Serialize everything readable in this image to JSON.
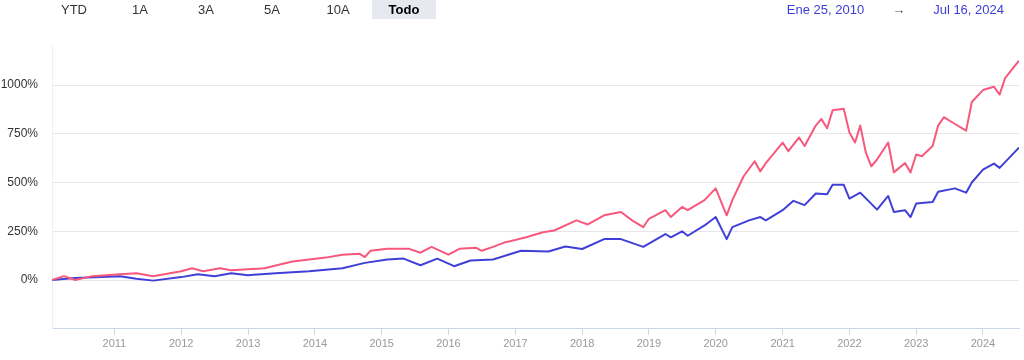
{
  "chart_data": {
    "type": "line",
    "marker": "none",
    "line_style": "solid",
    "grid": "y",
    "legend": false,
    "xlim": [
      "2010-01-25",
      "2024-07-16"
    ],
    "xticks": [
      "2011",
      "2012",
      "2013",
      "2014",
      "2015",
      "2016",
      "2017",
      "2018",
      "2019",
      "2020",
      "2021",
      "2022",
      "2023",
      "2024"
    ],
    "ylim": [
      -250,
      1200
    ],
    "yticks": [
      {
        "value": 0,
        "label": "0%"
      },
      {
        "value": 250,
        "label": "250%"
      },
      {
        "value": 500,
        "label": "500%"
      },
      {
        "value": 750,
        "label": "750%"
      },
      {
        "value": 1000,
        "label": "1000%"
      }
    ],
    "annotations": [
      "YTD",
      "1A",
      "3A",
      "5A",
      "10A",
      "Todo",
      "Ene 25, 2010",
      "→",
      "Jul 16, 2024"
    ],
    "series": [
      {
        "color": "#f7587c",
        "x": [
          "2010-01-25",
          "2010-04",
          "2010-06",
          "2010-09",
          "2011-02",
          "2011-05",
          "2011-08",
          "2012-01",
          "2012-03",
          "2012-05",
          "2012-08",
          "2012-10",
          "2013-04",
          "2013-06",
          "2013-09",
          "2013-12",
          "2014-03",
          "2014-06",
          "2014-09",
          "2014-10",
          "2014-11",
          "2015-02",
          "2015-06",
          "2015-08",
          "2015-10",
          "2016-01",
          "2016-03",
          "2016-06",
          "2016-07",
          "2016-09",
          "2016-11",
          "2017-03",
          "2017-06",
          "2017-08",
          "2017-12",
          "2018-02",
          "2018-05",
          "2018-08",
          "2018-10",
          "2018-12",
          "2019-01",
          "2019-04",
          "2019-05",
          "2019-07",
          "2019-08",
          "2019-11",
          "2020-01",
          "2020-03",
          "2020-04",
          "2020-06",
          "2020-08",
          "2020-09",
          "2020-10",
          "2021-01",
          "2021-02",
          "2021-04",
          "2021-05",
          "2021-07",
          "2021-08",
          "2021-09",
          "2021-10",
          "2021-12",
          "2022-01",
          "2022-02",
          "2022-03",
          "2022-04",
          "2022-05",
          "2022-06",
          "2022-08",
          "2022-09",
          "2022-11",
          "2022-12",
          "2023-01",
          "2023-02",
          "2023-04",
          "2023-05",
          "2023-06",
          "2023-08",
          "2023-10",
          "2023-11",
          "2024-01",
          "2024-03",
          "2024-04",
          "2024-05",
          "2024-07-16"
        ],
        "values": [
          0,
          20,
          0,
          20,
          30,
          35,
          20,
          45,
          60,
          45,
          60,
          50,
          60,
          75,
          95,
          105,
          115,
          130,
          135,
          118,
          150,
          160,
          160,
          140,
          170,
          130,
          160,
          165,
          150,
          170,
          192,
          219,
          245,
          254,
          306,
          285,
          332,
          349,
          306,
          271,
          314,
          358,
          323,
          375,
          358,
          410,
          470,
          332,
          410,
          531,
          609,
          557,
          600,
          705,
          661,
          731,
          687,
          792,
          826,
          778,
          870,
          878,
          757,
          705,
          792,
          653,
          583,
          618,
          705,
          552,
          600,
          552,
          644,
          635,
          687,
          792,
          835,
          800,
          766,
          913,
          974,
          991,
          951,
          1035,
          1125
        ]
      },
      {
        "color": "#4040d8",
        "x": [
          "2010-01-25",
          "2010-06",
          "2011-02",
          "2011-05",
          "2011-08",
          "2012-01",
          "2012-04",
          "2012-07",
          "2012-10",
          "2013-01",
          "2013-06",
          "2013-12",
          "2014-06",
          "2014-10",
          "2015-02",
          "2015-05",
          "2015-08",
          "2015-11",
          "2016-02",
          "2016-05",
          "2016-09",
          "2016-12",
          "2017-02",
          "2017-07",
          "2017-10",
          "2018-01",
          "2018-05",
          "2018-08",
          "2018-12",
          "2019-04",
          "2019-05",
          "2019-07",
          "2019-08",
          "2019-11",
          "2020-01",
          "2020-03",
          "2020-04",
          "2020-07",
          "2020-09",
          "2020-10",
          "2021-01",
          "2021-03",
          "2021-05",
          "2021-07",
          "2021-09",
          "2021-10",
          "2021-12",
          "2022-01",
          "2022-03",
          "2022-06",
          "2022-08",
          "2022-09",
          "2022-11",
          "2022-12",
          "2023-01",
          "2023-04",
          "2023-05",
          "2023-08",
          "2023-10",
          "2023-11",
          "2024-01",
          "2024-03",
          "2024-04",
          "2024-07-16"
        ],
        "values": [
          0,
          10,
          20,
          7,
          -3,
          15,
          30,
          20,
          35,
          25,
          35,
          45,
          60,
          88,
          105,
          110,
          76,
          110,
          71,
          100,
          105,
          132,
          150,
          146,
          172,
          159,
          210,
          210,
          170,
          236,
          219,
          250,
          227,
          280,
          323,
          210,
          271,
          306,
          323,
          306,
          358,
          406,
          384,
          444,
          440,
          488,
          488,
          418,
          448,
          361,
          431,
          349,
          358,
          323,
          392,
          400,
          453,
          470,
          448,
          500,
          566,
          597,
          575,
          679
        ]
      }
    ]
  }
}
